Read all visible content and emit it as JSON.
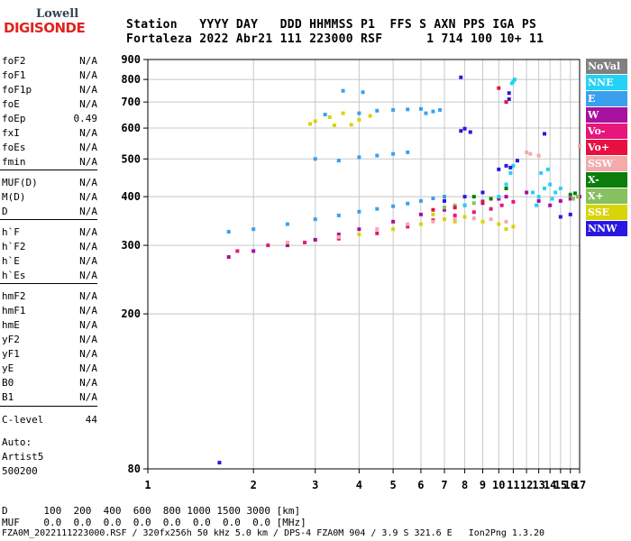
{
  "logo": {
    "line1": "Lowell",
    "line2": "DIGISONDE"
  },
  "header": {
    "line1": "Station   YYYY DAY   DDD HHMMSS P1  FFS S AXN PPS IGA PS",
    "line2": "Fortaleza 2022 Abr21 111 223000 RSF      1 714 100 10+ 11"
  },
  "params": [
    {
      "label": "foF2",
      "value": "N/A"
    },
    {
      "label": "foF1",
      "value": "N/A"
    },
    {
      "label": "foF1p",
      "value": "N/A"
    },
    {
      "label": "foE",
      "value": "N/A"
    },
    {
      "label": "foEp",
      "value": "0.49"
    },
    {
      "label": "fxI",
      "value": "N/A"
    },
    {
      "label": "foEs",
      "value": "N/A"
    },
    {
      "label": "fmin",
      "value": "N/A"
    },
    {
      "label": "MUF(D)",
      "value": "N/A"
    },
    {
      "label": "M(D)",
      "value": "N/A"
    },
    {
      "label": "D",
      "value": "N/A"
    },
    {
      "label": "h`F",
      "value": "N/A"
    },
    {
      "label": "h`F2",
      "value": "N/A"
    },
    {
      "label": "h`E",
      "value": "N/A"
    },
    {
      "label": "h`Es",
      "value": "N/A"
    },
    {
      "label": "hmF2",
      "value": "N/A"
    },
    {
      "label": "hmF1",
      "value": "N/A"
    },
    {
      "label": "hmE",
      "value": "N/A"
    },
    {
      "label": "yF2",
      "value": "N/A"
    },
    {
      "label": "yF1",
      "value": "N/A"
    },
    {
      "label": "yE",
      "value": "N/A"
    },
    {
      "label": "B0",
      "value": "N/A"
    },
    {
      "label": "B1",
      "value": "N/A"
    },
    {
      "label": "C-level",
      "value": "44"
    }
  ],
  "auto": {
    "label": "Auto:",
    "artist": "Artist5",
    "code": "500200"
  },
  "legend": [
    {
      "label": "NoVal",
      "color": "#808080"
    },
    {
      "label": "NNE",
      "color": "#22d3f5"
    },
    {
      "label": "E",
      "color": "#3aa0ee"
    },
    {
      "label": "W",
      "color": "#a8109e"
    },
    {
      "label": "Vo-",
      "color": "#e8157a"
    },
    {
      "label": "Vo+",
      "color": "#e81040"
    },
    {
      "label": "SSW",
      "color": "#f2aaaa"
    },
    {
      "label": "X-",
      "color": "#0a7d0a"
    },
    {
      "label": "X+",
      "color": "#86c060"
    },
    {
      "label": "SSE",
      "color": "#d8d40a"
    },
    {
      "label": "NNW",
      "color": "#2a18e0"
    }
  ],
  "footer": {
    "line1": "D      100  200  400  600  800 1000 1500 3000 [km]",
    "line2": "MUF    0.0  0.0  0.0  0.0  0.0  0.0  0.0  0.0 [MHz]",
    "line3": "FZA0M_2022111223000.RSF / 320fx256h 50 kHz 5.0 km / DPS-4 FZA0M 904 / 3.9 S 321.6 E   Ion2Png 1.3.20"
  },
  "chart_data": {
    "type": "scatter",
    "title": "",
    "xlabel": "",
    "ylabel": "",
    "xlim": [
      1,
      17
    ],
    "ylim": [
      80,
      900
    ],
    "xticks": [
      1,
      2,
      3,
      4,
      5,
      6,
      7,
      8,
      9,
      10,
      11,
      12,
      13,
      14,
      15,
      16,
      17
    ],
    "yticks": [
      80,
      200,
      300,
      400,
      500,
      600,
      700,
      800,
      900
    ],
    "ytick_labels": [
      "80",
      "200",
      "300",
      "400",
      "500",
      "600",
      "700",
      "800",
      "900"
    ],
    "scale": "log-log",
    "grid": true,
    "series": [
      {
        "name": "E",
        "color": "#3aa0ee",
        "points": [
          [
            1.7,
            325
          ],
          [
            2.0,
            330
          ],
          [
            2.5,
            340
          ],
          [
            3.0,
            350
          ],
          [
            3.5,
            358
          ],
          [
            4.0,
            366
          ],
          [
            4.5,
            372
          ],
          [
            5.0,
            378
          ],
          [
            5.5,
            384
          ],
          [
            6.0,
            390
          ],
          [
            6.5,
            396
          ],
          [
            7.0,
            400
          ]
        ]
      },
      {
        "name": "E",
        "color": "#3aa0ee",
        "points": [
          [
            3.5,
            495
          ],
          [
            4.0,
            505
          ],
          [
            4.5,
            510
          ],
          [
            5.0,
            515
          ],
          [
            5.5,
            520
          ],
          [
            3.0,
            500
          ]
        ]
      },
      {
        "name": "E",
        "color": "#3aa0ee",
        "points": [
          [
            4.0,
            655
          ],
          [
            4.5,
            665
          ],
          [
            5.0,
            668
          ],
          [
            5.5,
            670
          ],
          [
            6.0,
            672
          ],
          [
            3.2,
            650
          ],
          [
            3.6,
            748
          ],
          [
            4.1,
            742
          ],
          [
            6.2,
            655
          ],
          [
            6.5,
            662
          ],
          [
            6.8,
            668
          ]
        ]
      },
      {
        "name": "SSE",
        "color": "#d8d40a",
        "points": [
          [
            3.0,
            625
          ],
          [
            3.3,
            640
          ],
          [
            3.6,
            655
          ],
          [
            4.0,
            630
          ],
          [
            4.3,
            645
          ],
          [
            3.8,
            612
          ],
          [
            3.4,
            610
          ],
          [
            2.9,
            615
          ]
        ]
      },
      {
        "name": "SSE",
        "color": "#d8d40a",
        "points": [
          [
            2.5,
            300
          ],
          [
            3.0,
            310
          ],
          [
            3.5,
            315
          ],
          [
            4.0,
            320
          ],
          [
            5.0,
            330
          ],
          [
            6.0,
            340
          ],
          [
            7.0,
            350
          ],
          [
            8.0,
            355
          ],
          [
            9.0,
            345
          ],
          [
            10.0,
            340
          ],
          [
            10.5,
            330
          ],
          [
            11.0,
            335
          ],
          [
            6.5,
            360
          ],
          [
            7.5,
            345
          ]
        ]
      },
      {
        "name": "W",
        "color": "#a8109e",
        "points": [
          [
            1.7,
            280
          ],
          [
            2.0,
            290
          ],
          [
            2.5,
            300
          ],
          [
            3.0,
            310
          ],
          [
            3.5,
            320
          ],
          [
            4.0,
            330
          ],
          [
            5.0,
            345
          ],
          [
            6.0,
            360
          ],
          [
            7.0,
            370
          ],
          [
            8.0,
            380
          ],
          [
            9.0,
            385
          ],
          [
            10.0,
            395
          ],
          [
            10.5,
            400
          ],
          [
            12.0,
            410
          ],
          [
            13.0,
            390
          ],
          [
            14.0,
            380
          ],
          [
            15.0,
            390
          ],
          [
            16.0,
            395
          ],
          [
            17.0,
            400
          ]
        ]
      },
      {
        "name": "Vo-",
        "color": "#e8157a",
        "points": [
          [
            1.8,
            290
          ],
          [
            2.2,
            300
          ],
          [
            2.8,
            305
          ],
          [
            3.5,
            312
          ],
          [
            4.5,
            322
          ],
          [
            5.5,
            335
          ],
          [
            6.5,
            348
          ],
          [
            7.5,
            358
          ],
          [
            8.5,
            365
          ],
          [
            9.5,
            372
          ],
          [
            10.2,
            380
          ],
          [
            11.0,
            388
          ]
        ]
      },
      {
        "name": "NNE",
        "color": "#22d3f5",
        "points": [
          [
            8.0,
            380
          ],
          [
            9.0,
            390
          ],
          [
            10.0,
            400
          ],
          [
            10.5,
            430
          ],
          [
            10.8,
            460
          ],
          [
            11.0,
            480
          ],
          [
            11.0,
            790
          ],
          [
            11.1,
            800
          ],
          [
            10.9,
            782
          ],
          [
            13.0,
            400
          ],
          [
            13.5,
            420
          ],
          [
            14.0,
            430
          ],
          [
            14.5,
            410
          ],
          [
            15.0,
            420
          ],
          [
            12.5,
            410
          ],
          [
            12.8,
            380
          ],
          [
            13.2,
            460
          ],
          [
            13.8,
            470
          ],
          [
            14.2,
            395
          ]
        ]
      },
      {
        "name": "NNW",
        "color": "#2a18e0",
        "points": [
          [
            7.0,
            390
          ],
          [
            8.0,
            400
          ],
          [
            9.0,
            410
          ],
          [
            10.0,
            470
          ],
          [
            10.5,
            480
          ],
          [
            10.8,
            475
          ],
          [
            11.3,
            495
          ],
          [
            1.6,
            83
          ],
          [
            7.8,
            590
          ],
          [
            8.0,
            598
          ],
          [
            8.3,
            586
          ],
          [
            13.5,
            580
          ],
          [
            7.8,
            810
          ],
          [
            10.7,
            738
          ],
          [
            10.7,
            712
          ],
          [
            15.0,
            355
          ],
          [
            16.0,
            360
          ]
        ]
      },
      {
        "name": "SSW",
        "color": "#f2aaaa",
        "points": [
          [
            2.5,
            305
          ],
          [
            3.5,
            315
          ],
          [
            4.5,
            330
          ],
          [
            5.5,
            340
          ],
          [
            6.5,
            345
          ],
          [
            7.5,
            350
          ],
          [
            8.5,
            352
          ],
          [
            9.5,
            350
          ],
          [
            10.5,
            345
          ],
          [
            12.0,
            520
          ],
          [
            12.3,
            515
          ],
          [
            13.0,
            510
          ],
          [
            17.0,
            540
          ]
        ]
      },
      {
        "name": "X-",
        "color": "#0a7d0a",
        "points": [
          [
            8.5,
            400
          ],
          [
            9.5,
            395
          ],
          [
            10.5,
            420
          ],
          [
            16.0,
            405
          ],
          [
            16.5,
            408
          ]
        ]
      },
      {
        "name": "X+",
        "color": "#86c060",
        "points": [
          [
            7.0,
            375
          ],
          [
            7.5,
            380
          ],
          [
            8.5,
            385
          ],
          [
            16.3,
            395
          ],
          [
            16.8,
            400
          ]
        ]
      },
      {
        "name": "Vo+",
        "color": "#e81040",
        "points": [
          [
            6.5,
            370
          ],
          [
            7.5,
            375
          ],
          [
            9.0,
            388
          ],
          [
            10.5,
            700
          ],
          [
            10.0,
            760
          ]
        ]
      }
    ]
  }
}
